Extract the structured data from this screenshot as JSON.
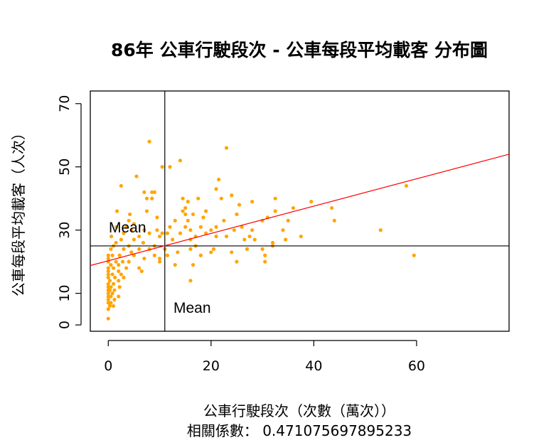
{
  "chart_data": {
    "type": "scatter",
    "title": "86年 公車行駛段次 - 公車每段平均載客 分布圖",
    "xlabel": "公車行駛段次（次數（萬次））",
    "ylabel": "公車每段平均載客（人次）",
    "subtitle": "相關係數： 0.471075697895233",
    "xlim": [
      -3.5,
      78
    ],
    "ylim": [
      -2,
      74
    ],
    "x_ticks": [
      0,
      20,
      40,
      60
    ],
    "y_ticks": [
      0,
      10,
      30,
      50,
      70
    ],
    "point_color": "#FFA500",
    "trend_color": "#FF0000",
    "mean_x": 11,
    "mean_y": 25,
    "mean_x_label": "Mean",
    "mean_y_label": "Mean",
    "trend_line": {
      "x": [
        -3.5,
        78
      ],
      "y": [
        18.8,
        54
      ]
    },
    "points": [
      [
        0,
        2
      ],
      [
        0,
        5
      ],
      [
        0,
        7
      ],
      [
        0,
        8
      ],
      [
        0,
        9
      ],
      [
        0,
        10
      ],
      [
        0,
        11
      ],
      [
        0,
        12
      ],
      [
        0,
        13
      ],
      [
        0,
        15
      ],
      [
        0,
        16
      ],
      [
        0,
        17
      ],
      [
        0,
        18
      ],
      [
        0,
        20
      ],
      [
        0,
        21
      ],
      [
        0,
        22
      ],
      [
        0.3,
        6
      ],
      [
        0.3,
        11
      ],
      [
        0.3,
        14
      ],
      [
        0.5,
        7
      ],
      [
        0.5,
        9
      ],
      [
        0.5,
        12
      ],
      [
        0.5,
        19
      ],
      [
        0.5,
        24
      ],
      [
        0.6,
        28
      ],
      [
        0.8,
        10
      ],
      [
        0.8,
        16
      ],
      [
        0.8,
        22
      ],
      [
        1,
        6
      ],
      [
        1,
        13
      ],
      [
        1,
        18
      ],
      [
        1,
        25
      ],
      [
        1.2,
        8
      ],
      [
        1.2,
        11
      ],
      [
        1.3,
        15
      ],
      [
        1.5,
        20
      ],
      [
        1.5,
        26
      ],
      [
        1.6,
        31
      ],
      [
        1.7,
        36
      ],
      [
        2,
        9
      ],
      [
        2,
        14
      ],
      [
        2,
        17
      ],
      [
        2,
        19
      ],
      [
        2.2,
        12
      ],
      [
        2.2,
        22
      ],
      [
        2.5,
        16
      ],
      [
        2.5,
        27
      ],
      [
        2.5,
        44
      ],
      [
        2.8,
        20
      ],
      [
        3,
        15
      ],
      [
        3,
        24
      ],
      [
        3,
        29
      ],
      [
        3.5,
        18
      ],
      [
        3.5,
        31
      ],
      [
        4,
        20
      ],
      [
        4,
        25
      ],
      [
        4,
        33
      ],
      [
        4.2,
        35
      ],
      [
        4.5,
        23
      ],
      [
        4.5,
        30
      ],
      [
        5,
        22
      ],
      [
        5,
        27
      ],
      [
        5,
        32
      ],
      [
        5.5,
        47
      ],
      [
        6,
        18
      ],
      [
        6,
        24
      ],
      [
        6,
        28
      ],
      [
        6.5,
        17
      ],
      [
        6.8,
        26
      ],
      [
        7,
        21
      ],
      [
        7,
        30
      ],
      [
        7,
        42
      ],
      [
        7.5,
        36
      ],
      [
        7.5,
        40
      ],
      [
        8,
        24
      ],
      [
        8,
        29
      ],
      [
        8,
        58
      ],
      [
        8.5,
        40
      ],
      [
        8.5,
        42
      ],
      [
        9,
        22
      ],
      [
        9,
        25
      ],
      [
        9,
        42
      ],
      [
        9.5,
        30
      ],
      [
        9.5,
        34
      ],
      [
        10,
        20
      ],
      [
        10,
        21
      ],
      [
        10,
        28
      ],
      [
        10.5,
        29
      ],
      [
        10.5,
        50
      ],
      [
        11,
        24
      ],
      [
        11.5,
        22
      ],
      [
        11.5,
        29
      ],
      [
        12,
        50
      ],
      [
        12,
        31
      ],
      [
        12.5,
        27
      ],
      [
        13,
        19
      ],
      [
        13,
        33
      ],
      [
        13.5,
        23
      ],
      [
        14,
        52
      ],
      [
        14,
        29
      ],
      [
        14.5,
        36
      ],
      [
        14.5,
        40
      ],
      [
        15,
        31
      ],
      [
        15,
        35
      ],
      [
        15,
        37
      ],
      [
        15.5,
        33
      ],
      [
        15.5,
        39
      ],
      [
        16,
        30
      ],
      [
        16,
        27
      ],
      [
        16,
        24
      ],
      [
        16,
        14
      ],
      [
        16.5,
        35
      ],
      [
        16.5,
        19
      ],
      [
        17,
        28
      ],
      [
        17,
        25
      ],
      [
        17.5,
        40
      ],
      [
        18,
        31
      ],
      [
        18,
        22
      ],
      [
        18.5,
        34
      ],
      [
        19,
        29
      ],
      [
        19,
        36
      ],
      [
        20,
        23
      ],
      [
        20,
        30
      ],
      [
        20.5,
        24
      ],
      [
        21,
        28
      ],
      [
        21,
        31
      ],
      [
        21,
        43
      ],
      [
        21.5,
        46
      ],
      [
        22,
        40
      ],
      [
        22.5,
        33
      ],
      [
        23,
        56
      ],
      [
        23,
        28
      ],
      [
        24,
        23
      ],
      [
        24,
        41
      ],
      [
        24.5,
        30
      ],
      [
        25,
        20
      ],
      [
        25,
        35
      ],
      [
        25.5,
        38
      ],
      [
        26,
        31
      ],
      [
        26.5,
        27
      ],
      [
        27,
        24
      ],
      [
        27.5,
        28
      ],
      [
        28,
        30
      ],
      [
        28,
        39
      ],
      [
        28.5,
        27
      ],
      [
        30,
        33
      ],
      [
        30,
        24
      ],
      [
        30.5,
        20
      ],
      [
        30.5,
        22
      ],
      [
        31,
        34
      ],
      [
        32,
        25
      ],
      [
        32,
        26
      ],
      [
        32.5,
        36
      ],
      [
        32.5,
        40
      ],
      [
        34,
        30
      ],
      [
        34.5,
        27
      ],
      [
        35,
        33
      ],
      [
        36,
        37
      ],
      [
        37.5,
        28
      ],
      [
        39.5,
        39
      ],
      [
        43.5,
        37
      ],
      [
        44,
        33
      ],
      [
        53,
        30
      ],
      [
        58,
        44
      ],
      [
        59.5,
        22
      ]
    ]
  }
}
